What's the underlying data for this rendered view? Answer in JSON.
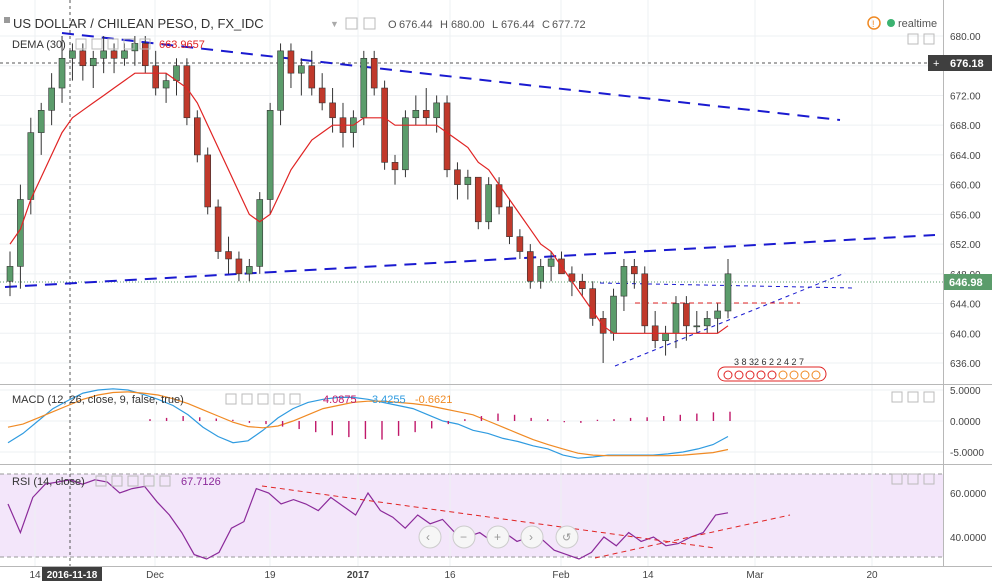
{
  "header": {
    "symbol_title": "US DOLLAR / CHILEAN PESO, D, FX_IDC",
    "open_label": "O",
    "open": "676.44",
    "high_label": "H",
    "high": "680.00",
    "low_label": "L",
    "low": "676.44",
    "close_label": "C",
    "close": "677.72",
    "realtime_label": "realtime",
    "dema_label": "DEMA (30)",
    "dema_value": "663.9657"
  },
  "macd": {
    "label": "MACD (12, 26, close, 9, false, true)",
    "histogram_value": "4.0875",
    "macd_value": "3.4255",
    "signal_value": "-0.6621"
  },
  "rsi": {
    "label": "RSI (14, close)",
    "value": "67.7126"
  },
  "price_badges": {
    "crosshair_price": "676.18",
    "last_price": "646.98"
  },
  "pattern_label": "3 8 32 6 2 2 4 2 7",
  "colors": {
    "up": "#5b9c6b",
    "down": "#c0392b",
    "dema": "#e02424",
    "trendline": "#1a1ad0",
    "macd_line": "#2f9be0",
    "signal_line": "#f08a24",
    "histogram": "#c0186a",
    "rsi_line": "#8b2a9a",
    "rsi_band": "#f3e6fa"
  },
  "chart_data": [
    {
      "type": "candlestick",
      "title": "US DOLLAR / CHILEAN PESO, D, FX_IDC",
      "ylim": [
        633,
        682
      ],
      "y_ticks": [
        "680.00",
        "676.00",
        "672.00",
        "668.00",
        "664.00",
        "660.00",
        "656.00",
        "652.00",
        "648.00",
        "644.00",
        "640.00",
        "636.00"
      ],
      "x_ticks": [
        "14",
        "2016-11-18",
        "Dec",
        "19",
        "2017",
        "16",
        "Feb",
        "14",
        "Mar",
        "20"
      ],
      "ohlc": [
        [
          647,
          651,
          645,
          649
        ],
        [
          649,
          660,
          646,
          658
        ],
        [
          658,
          669,
          656,
          667
        ],
        [
          667,
          671,
          664,
          670
        ],
        [
          670,
          675,
          668,
          673
        ],
        [
          673,
          680,
          671,
          677
        ],
        [
          677,
          679,
          674,
          678
        ],
        [
          678,
          679,
          674,
          676
        ],
        [
          676,
          678,
          673,
          677
        ],
        [
          677,
          680,
          675,
          678
        ],
        [
          678,
          679,
          675,
          677
        ],
        [
          677,
          679,
          676,
          678
        ],
        [
          678,
          680,
          676,
          679
        ],
        [
          679,
          680,
          675,
          676
        ],
        [
          676,
          678,
          672,
          673
        ],
        [
          673,
          675,
          671,
          674
        ],
        [
          674,
          677,
          672,
          676
        ],
        [
          676,
          677,
          668,
          669
        ],
        [
          669,
          670,
          663,
          664
        ],
        [
          664,
          665,
          656,
          657
        ],
        [
          657,
          658,
          650,
          651
        ],
        [
          651,
          653,
          648,
          650
        ],
        [
          650,
          651,
          647,
          648
        ],
        [
          648,
          650,
          647,
          649
        ],
        [
          649,
          659,
          648,
          658
        ],
        [
          658,
          671,
          656,
          670
        ],
        [
          670,
          679,
          668,
          678
        ],
        [
          678,
          679,
          673,
          675
        ],
        [
          675,
          677,
          672,
          676
        ],
        [
          676,
          678,
          672,
          673
        ],
        [
          673,
          675,
          670,
          671
        ],
        [
          671,
          673,
          667,
          669
        ],
        [
          669,
          671,
          665,
          667
        ],
        [
          667,
          670,
          665,
          669
        ],
        [
          669,
          678,
          668,
          677
        ],
        [
          677,
          678,
          672,
          673
        ],
        [
          673,
          674,
          662,
          663
        ],
        [
          663,
          664,
          660,
          662
        ],
        [
          662,
          670,
          661,
          669
        ],
        [
          669,
          672,
          668,
          670
        ],
        [
          670,
          673,
          668,
          669
        ],
        [
          669,
          672,
          667,
          671
        ],
        [
          671,
          672,
          661,
          662
        ],
        [
          662,
          663,
          658,
          660
        ],
        [
          660,
          662,
          658,
          661
        ],
        [
          661,
          661,
          654,
          655
        ],
        [
          655,
          661,
          654,
          660
        ],
        [
          660,
          661,
          656,
          657
        ],
        [
          657,
          658,
          652,
          653
        ],
        [
          653,
          654,
          650,
          651
        ],
        [
          651,
          652,
          646,
          647
        ],
        [
          647,
          650,
          646,
          649
        ],
        [
          649,
          651,
          647,
          650
        ],
        [
          650,
          651,
          648,
          648
        ],
        [
          648,
          649,
          645,
          647
        ],
        [
          647,
          648,
          645,
          646
        ],
        [
          646,
          647,
          641,
          642
        ],
        [
          642,
          643,
          636,
          640
        ],
        [
          640,
          646,
          639,
          645
        ],
        [
          645,
          650,
          643,
          649
        ],
        [
          649,
          650,
          646,
          648
        ],
        [
          648,
          649,
          640,
          641
        ],
        [
          641,
          643,
          638,
          639
        ],
        [
          639,
          641,
          637,
          640
        ],
        [
          640,
          645,
          638,
          644
        ],
        [
          644,
          645,
          639,
          641
        ],
        [
          641,
          643,
          640,
          641
        ],
        [
          641,
          643,
          640,
          642
        ],
        [
          642,
          644,
          640,
          643
        ],
        [
          643,
          650,
          642,
          648
        ]
      ],
      "dema": [
        652,
        654,
        658,
        661,
        664,
        667,
        669,
        670,
        671,
        672,
        673,
        674,
        675,
        675,
        675,
        675,
        674,
        673,
        671,
        668,
        665,
        662,
        659,
        656,
        655,
        656,
        659,
        662,
        664,
        666,
        667,
        668,
        668,
        668,
        669,
        669,
        669,
        668,
        668,
        668,
        668,
        668,
        667,
        666,
        665,
        663,
        662,
        660,
        658,
        656,
        654,
        652,
        651,
        649,
        647,
        645,
        643,
        641,
        640,
        640,
        640,
        640,
        640,
        640,
        640,
        640,
        640,
        640,
        640,
        641
      ]
    },
    {
      "type": "line",
      "title": "MACD (12, 26, close, 9, false, true)",
      "ylim": [
        -6,
        6
      ],
      "y_ticks": [
        "5.0000",
        "0.0000",
        "-5.0000"
      ],
      "series": [
        {
          "name": "MACD",
          "values": [
            -3.5,
            -2,
            0,
            2,
            3.3,
            4.5,
            5,
            5.2,
            5,
            4.3,
            3.5,
            2.5,
            1,
            -1,
            -2.5,
            -3.5,
            -3.2,
            -1.5,
            0.5,
            2,
            3,
            3.5,
            3.8,
            3.8,
            3.5,
            3,
            2.5,
            2,
            1,
            0,
            -0.5,
            -1.5,
            -2,
            -2.8,
            -3.3,
            -4,
            -4.5,
            -5.5,
            -6,
            -5.8,
            -5.5,
            -5.5,
            -5.5,
            -5.5,
            -5.3,
            -5,
            -4.5,
            -3.8,
            -2.5
          ]
        },
        {
          "name": "Signal",
          "values": [
            -1,
            -0.5,
            0.5,
            1.5,
            2.5,
            3.5,
            4.2,
            4.6,
            4.7,
            4.5,
            4.2,
            3.6,
            2.8,
            1.8,
            0.8,
            -0.2,
            -0.9,
            -1.1,
            -0.8,
            0,
            1,
            2,
            2.5,
            3,
            3.2,
            3.2,
            3,
            2.8,
            2.5,
            2,
            1.5,
            1,
            0,
            -1,
            -2,
            -3,
            -3.8,
            -4.5,
            -5.2,
            -5.5,
            -5.6,
            -5.6,
            -5.6,
            -5.6,
            -5.6,
            -5.5,
            -5.3,
            -5.1,
            -4.6
          ]
        },
        {
          "name": "Histogram",
          "values": [
            0.3,
            0.5,
            0.8,
            0.6,
            0.4,
            0.2,
            -0.3,
            -0.5,
            -0.9,
            -1.3,
            -1.8,
            -2.3,
            -2.6,
            -2.9,
            -3,
            -2.4,
            -1.8,
            -1.2,
            -0.5,
            0.3,
            0.8,
            1.2,
            1,
            0.5,
            0.3,
            -0.2,
            -0.3,
            0.2,
            0.3,
            0.5,
            0.6,
            0.8,
            1,
            1.2,
            1.4,
            1.5
          ]
        }
      ]
    },
    {
      "type": "line",
      "title": "RSI (14, close)",
      "ylim": [
        28,
        72
      ],
      "y_ticks": [
        "60.0000",
        "40.0000"
      ],
      "series": [
        {
          "name": "RSI",
          "values": [
            55,
            42,
            58,
            64,
            65,
            66,
            64,
            66,
            65,
            60,
            62,
            63,
            56,
            50,
            42,
            32,
            30,
            33,
            44,
            47,
            62,
            60,
            55,
            57,
            55,
            52,
            58,
            54,
            50,
            60,
            52,
            49,
            44,
            50,
            46,
            48,
            42,
            40,
            42,
            38,
            42,
            38,
            40,
            39,
            34,
            32,
            30,
            33,
            40,
            36,
            42,
            38,
            40,
            36,
            37,
            40,
            42,
            50,
            51
          ]
        }
      ]
    }
  ]
}
